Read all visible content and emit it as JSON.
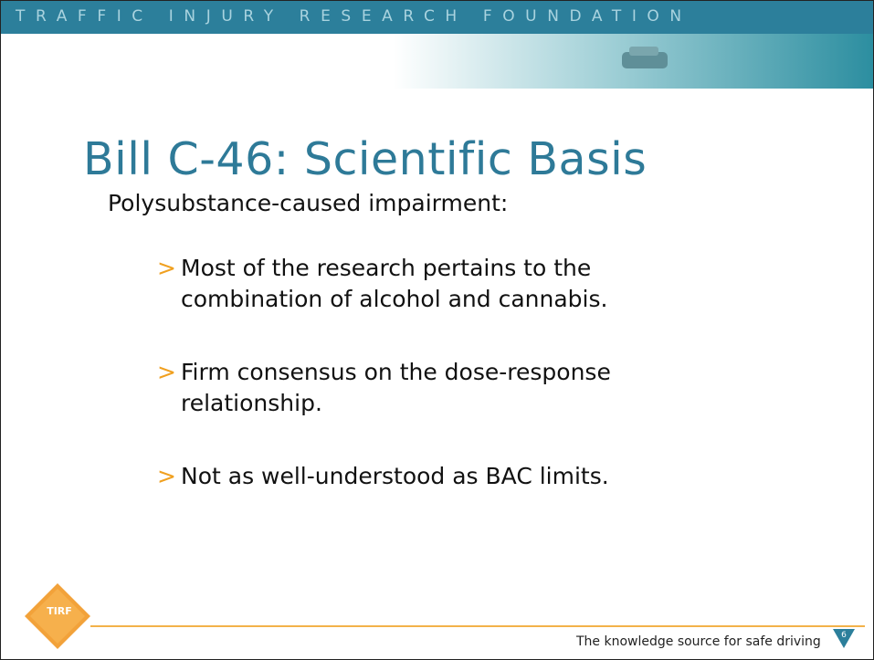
{
  "header": {
    "organization": "TRAFFIC INJURY RESEARCH FOUNDATION"
  },
  "title": "Bill C-46: Scientific Basis",
  "subtitle": "Polysubstance-caused impairment:",
  "bullets": [
    {
      "marker": ">",
      "text": "Most of the research pertains to the combination of alcohol and cannabis."
    },
    {
      "marker": ">",
      "text": "Firm consensus on the dose-response relationship."
    },
    {
      "marker": ">",
      "text": "Not as well-understood as BAC limits."
    }
  ],
  "footer": {
    "logo": "TIRF",
    "tagline": "The knowledge source for safe driving",
    "page_number": "6"
  }
}
